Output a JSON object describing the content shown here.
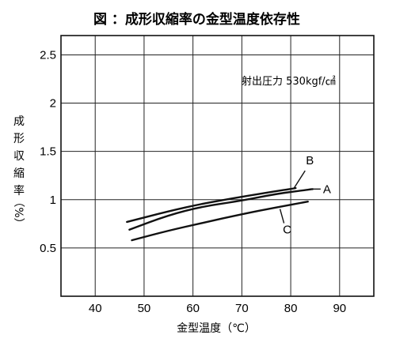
{
  "chart_data": {
    "type": "line",
    "title": "図 ：成形収縮率の金型温度依存性",
    "xlabel": "金型温度（℃）",
    "ylabel": [
      "成",
      "形",
      "収",
      "縮",
      "率",
      "（%）"
    ],
    "xlim": [
      33,
      97
    ],
    "ylim": [
      0,
      2.7
    ],
    "x_ticks": [
      40,
      50,
      60,
      70,
      80,
      90
    ],
    "y_ticks": [
      0.5,
      1,
      1.5,
      2,
      2.5
    ],
    "y_tick_labels": [
      "0.5",
      "1",
      "1.5",
      "2",
      "2.5"
    ],
    "grid": true,
    "annotation": "射出圧力 530kgf/㎠",
    "series": [
      {
        "name": "A",
        "x": [
          47,
          55,
          62,
          70,
          77,
          83,
          84.5
        ],
        "values": [
          0.69,
          0.84,
          0.93,
          0.99,
          1.06,
          1.1,
          1.11
        ]
      },
      {
        "name": "B",
        "x": [
          46.5,
          55,
          62,
          70,
          76,
          81
        ],
        "values": [
          0.77,
          0.88,
          0.96,
          1.03,
          1.08,
          1.12
        ]
      },
      {
        "name": "C",
        "x": [
          47.5,
          55,
          62,
          70,
          77,
          83.5
        ],
        "values": [
          0.58,
          0.68,
          0.76,
          0.85,
          0.92,
          0.98
        ]
      }
    ]
  }
}
